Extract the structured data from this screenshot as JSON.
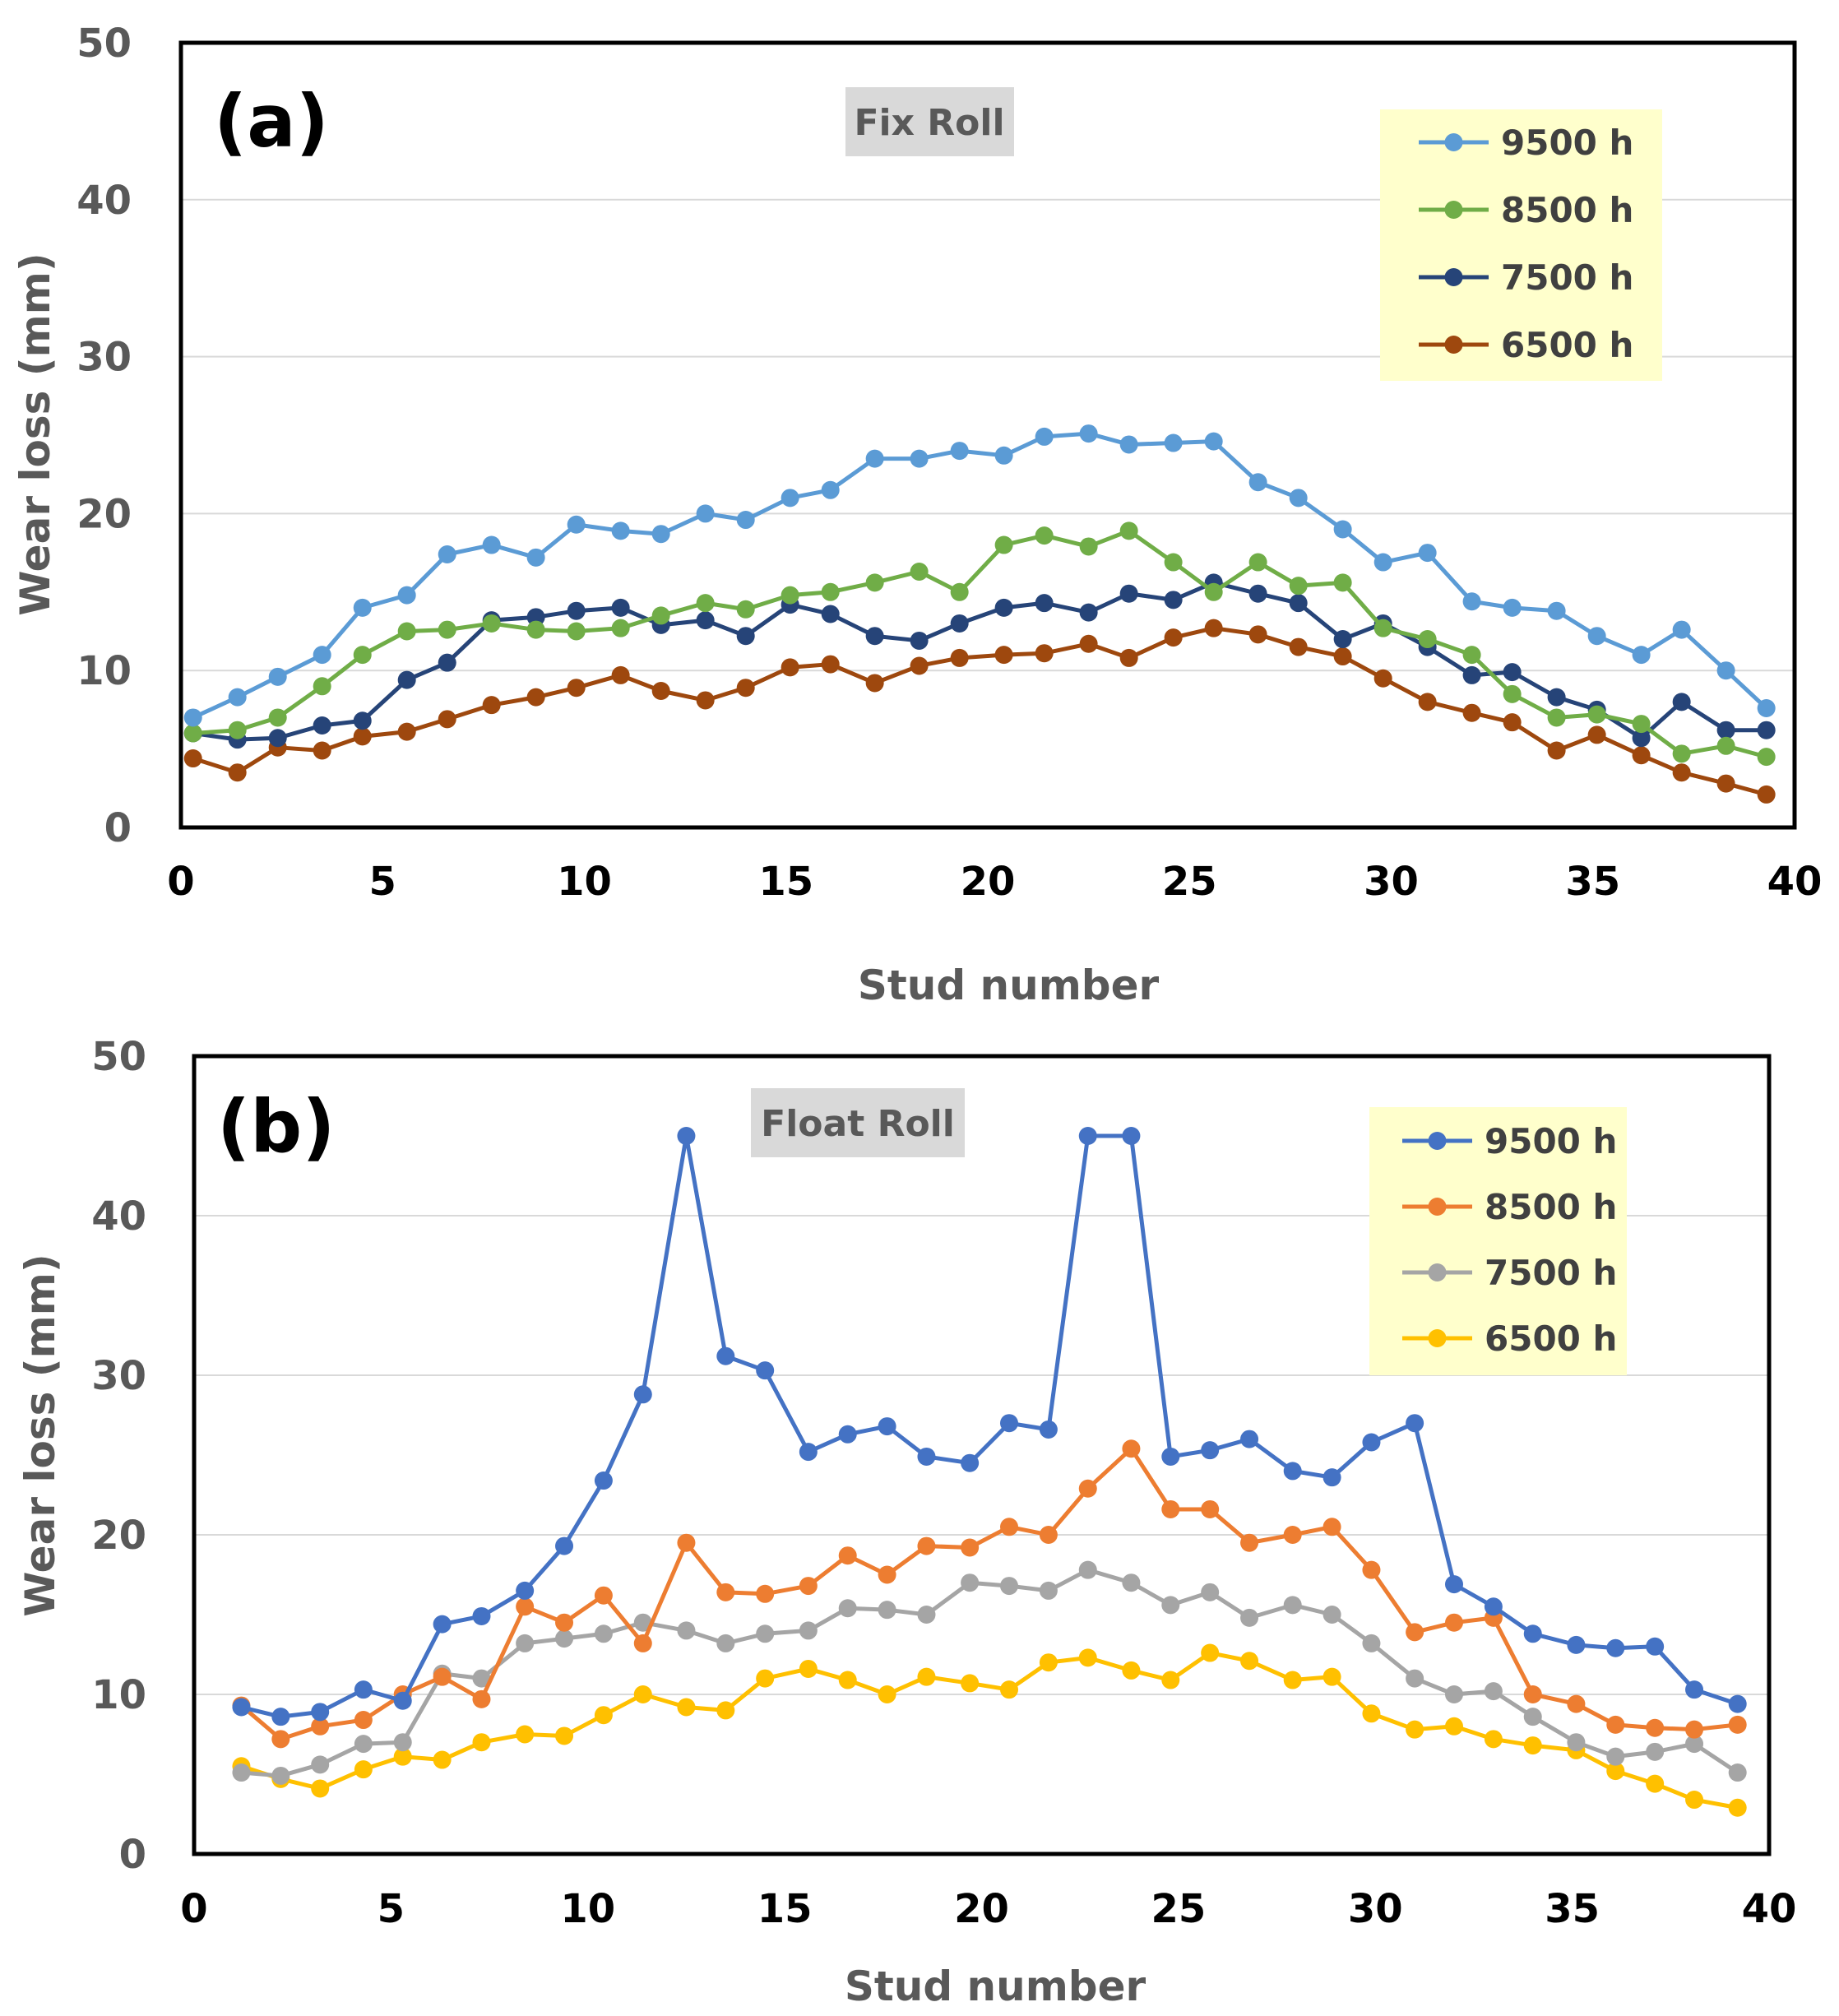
{
  "chart_data": [
    {
      "type": "line",
      "panel_label": "(a)",
      "title": "Fix Roll",
      "xlabel": "Stud number",
      "ylabel": "Wear loss (mm)",
      "xlim": [
        0,
        40
      ],
      "ylim": [
        0,
        50
      ],
      "xticks": [
        0,
        5,
        10,
        15,
        20,
        25,
        30,
        35,
        40
      ],
      "yticks": [
        0,
        10,
        20,
        30,
        40,
        50
      ],
      "grid": "horizontal",
      "legend_position": "top-right",
      "x": [
        0.3,
        1.4,
        2.4,
        3.5,
        4.5,
        5.6,
        6.6,
        7.7,
        8.8,
        9.8,
        10.9,
        11.9,
        13.0,
        14.0,
        15.1,
        16.1,
        17.2,
        18.3,
        19.3,
        20.4,
        21.4,
        22.5,
        23.5,
        24.6,
        25.6,
        26.7,
        27.7,
        28.8,
        29.8,
        30.9,
        32.0,
        33.0,
        34.1,
        35.1,
        36.2,
        37.2,
        38.3,
        39.3
      ],
      "series": [
        {
          "name": "9500 h",
          "color": "#5b9bd5",
          "values": [
            7.0,
            8.3,
            9.6,
            11.0,
            14.0,
            14.8,
            17.4,
            18.0,
            17.2,
            19.3,
            18.9,
            18.7,
            20.0,
            19.6,
            21.0,
            21.5,
            23.5,
            23.5,
            24.0,
            23.7,
            24.9,
            25.1,
            24.4,
            24.5,
            24.6,
            22.0,
            21.0,
            19.0,
            16.9,
            17.5,
            14.4,
            14.0,
            13.8,
            12.2,
            11.0,
            12.6,
            10.0,
            7.6
          ]
        },
        {
          "name": "8500 h",
          "color": "#70ad47",
          "values": [
            6.0,
            6.2,
            7.0,
            9.0,
            11.0,
            12.5,
            12.6,
            13.0,
            12.6,
            12.5,
            12.7,
            13.5,
            14.3,
            13.9,
            14.8,
            15.0,
            15.6,
            16.3,
            15.0,
            18.0,
            18.6,
            17.9,
            18.9,
            16.9,
            15.0,
            16.9,
            15.4,
            15.6,
            12.7,
            12.0,
            11.0,
            8.5,
            7.0,
            7.2,
            6.6,
            4.7,
            5.2,
            4.5
          ]
        },
        {
          "name": "7500 h",
          "color": "#264478",
          "values": [
            6.0,
            5.6,
            5.7,
            6.5,
            6.8,
            9.4,
            10.5,
            13.2,
            13.4,
            13.8,
            14.0,
            12.9,
            13.2,
            12.2,
            14.2,
            13.6,
            12.2,
            11.9,
            13.0,
            14.0,
            14.3,
            13.7,
            14.9,
            14.5,
            15.6,
            14.9,
            14.3,
            12.0,
            13.0,
            11.5,
            9.7,
            9.9,
            8.3,
            7.5,
            5.7,
            8.0,
            6.2,
            6.2
          ]
        },
        {
          "name": "6500 h",
          "color": "#9e480e",
          "values": [
            4.4,
            3.5,
            5.1,
            4.9,
            5.8,
            6.1,
            6.9,
            7.8,
            8.3,
            8.9,
            9.7,
            8.7,
            8.1,
            8.9,
            10.2,
            10.4,
            9.2,
            10.3,
            10.8,
            11.0,
            11.1,
            11.7,
            10.8,
            12.1,
            12.7,
            12.3,
            11.5,
            10.9,
            9.5,
            8.0,
            7.3,
            6.7,
            4.9,
            5.9,
            4.6,
            3.5,
            2.8,
            2.1
          ]
        }
      ]
    },
    {
      "type": "line",
      "panel_label": "(b)",
      "title": "Float Roll",
      "xlabel": "Stud number",
      "ylabel": "Wear loss (mm)",
      "xlim": [
        0,
        40
      ],
      "ylim": [
        0,
        50
      ],
      "xticks": [
        0,
        5,
        10,
        15,
        20,
        25,
        30,
        35,
        40
      ],
      "yticks": [
        0,
        10,
        20,
        30,
        40,
        50
      ],
      "grid": "horizontal",
      "legend_position": "top-right",
      "x": [
        1.2,
        2.2,
        3.2,
        4.3,
        5.3,
        6.3,
        7.3,
        8.4,
        9.4,
        10.4,
        11.4,
        12.5,
        13.5,
        14.5,
        15.6,
        16.6,
        17.6,
        18.6,
        19.7,
        20.7,
        21.7,
        22.7,
        23.8,
        24.8,
        25.8,
        26.8,
        27.9,
        28.9,
        29.9,
        31.0,
        32.0,
        33.0,
        34.0,
        35.1,
        36.1,
        37.1,
        38.1,
        39.2
      ],
      "series": [
        {
          "name": "9500 h",
          "color": "#4472c4",
          "values": [
            9.2,
            8.6,
            8.9,
            10.3,
            9.6,
            14.4,
            14.9,
            16.5,
            19.3,
            23.4,
            28.8,
            45.0,
            31.2,
            30.3,
            25.2,
            26.3,
            26.8,
            24.9,
            24.5,
            27.0,
            26.6,
            45.0,
            45.0,
            24.9,
            25.3,
            26.0,
            24.0,
            23.6,
            25.8,
            27.0,
            16.9,
            15.5,
            13.8,
            13.1,
            12.9,
            13.0,
            10.3,
            9.4
          ]
        },
        {
          "name": "8500 h",
          "color": "#ed7d31",
          "values": [
            9.3,
            7.2,
            8.0,
            8.4,
            10.0,
            11.1,
            9.7,
            15.5,
            14.5,
            16.2,
            13.2,
            19.5,
            16.4,
            16.3,
            16.8,
            18.7,
            17.5,
            19.3,
            19.2,
            20.5,
            20.0,
            22.9,
            25.4,
            21.6,
            21.6,
            19.5,
            20.0,
            20.5,
            17.8,
            13.9,
            14.5,
            14.8,
            10.0,
            9.4,
            8.1,
            7.9,
            7.8,
            8.1
          ]
        },
        {
          "name": "7500 h",
          "color": "#a5a5a5",
          "values": [
            5.1,
            4.9,
            5.6,
            6.9,
            7.0,
            11.3,
            11.0,
            13.2,
            13.5,
            13.8,
            14.5,
            14.0,
            13.2,
            13.8,
            14.0,
            15.4,
            15.3,
            15.0,
            17.0,
            16.8,
            16.5,
            17.8,
            17.0,
            15.6,
            16.4,
            14.8,
            15.6,
            15.0,
            13.2,
            11.0,
            10.0,
            10.2,
            8.6,
            7.0,
            6.1,
            6.4,
            6.9,
            5.1
          ]
        },
        {
          "name": "6500 h",
          "color": "#ffc000",
          "values": [
            5.5,
            4.7,
            4.1,
            5.3,
            6.1,
            5.9,
            7.0,
            7.5,
            7.4,
            8.7,
            10.0,
            9.2,
            9.0,
            11.0,
            11.6,
            10.9,
            10.0,
            11.1,
            10.7,
            10.3,
            12.0,
            12.3,
            11.5,
            10.9,
            12.6,
            12.1,
            10.9,
            11.1,
            8.8,
            7.8,
            8.0,
            7.2,
            6.8,
            6.5,
            5.2,
            4.4,
            3.4,
            2.9
          ]
        }
      ]
    }
  ]
}
